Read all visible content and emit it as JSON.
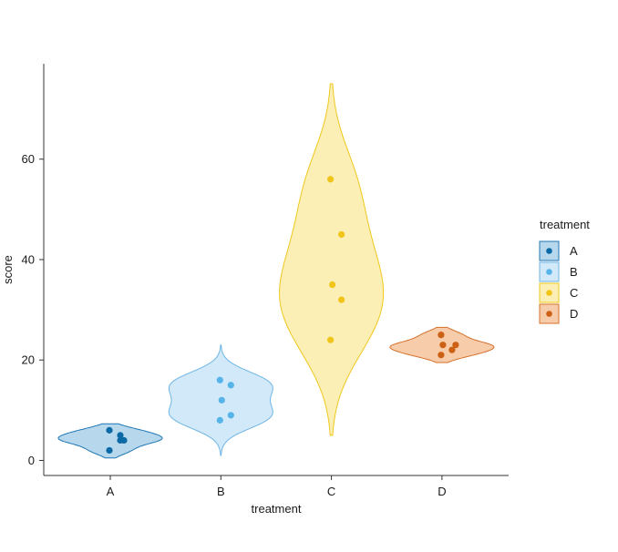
{
  "chart_data": {
    "type": "violin",
    "title": "",
    "xlabel": "treatment",
    "ylabel": "score",
    "categories": [
      "A",
      "B",
      "C",
      "D"
    ],
    "ylim": [
      -3,
      79
    ],
    "yticks": [
      0,
      20,
      40,
      60
    ],
    "grid": false,
    "legend": {
      "title": "treatment",
      "position": "right"
    },
    "series": [
      {
        "name": "A",
        "fill": "#b7d7ed",
        "stroke": "#1f77b4",
        "point": "#0b6aa6",
        "range": [
          0.5,
          7.3
        ],
        "points": [
          2,
          4,
          4,
          5,
          6
        ]
      },
      {
        "name": "B",
        "fill": "#d2e9f9",
        "stroke": "#6fb5e4",
        "point": "#56b4e9",
        "range": [
          1,
          23
        ],
        "points": [
          8,
          9,
          12,
          15,
          16
        ]
      },
      {
        "name": "C",
        "fill": "#fbefb5",
        "stroke": "#efc81d",
        "point": "#f0c419",
        "range": [
          5,
          75
        ],
        "points": [
          24,
          32,
          35,
          45,
          56
        ]
      },
      {
        "name": "D",
        "fill": "#f6ccab",
        "stroke": "#d5702a",
        "point": "#cc6014",
        "range": [
          19.5,
          26.5
        ],
        "points": [
          21,
          22,
          23,
          23,
          25
        ]
      }
    ]
  }
}
